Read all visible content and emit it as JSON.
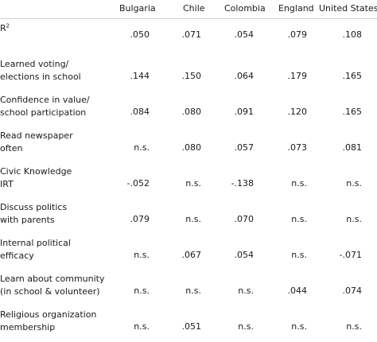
{
  "columns": [
    "Bulgaria",
    "Chile",
    "Colombia",
    "England",
    "United States"
  ],
  "rows": [
    {
      "label_lines": [
        "R",
        ""
      ],
      "label_sup": "2",
      "values": [
        ".050",
        ".071",
        ".054",
        ".079",
        ".108"
      ]
    },
    {
      "label_lines": [
        "Learned voting/",
        "elections in school"
      ],
      "values": [
        ".144",
        ".150",
        ".064",
        ".179",
        ".165"
      ]
    },
    {
      "label_lines": [
        "Confidence in value/",
        "school participation"
      ],
      "values": [
        ".084",
        ".080",
        ".091",
        ".120",
        ".165"
      ]
    },
    {
      "label_lines": [
        "Read newspaper",
        "often"
      ],
      "values": [
        "n.s.",
        ".080",
        ".057",
        ".073",
        ".081"
      ]
    },
    {
      "label_lines": [
        "Civic Knowledge",
        "IRT"
      ],
      "values": [
        "-.052",
        "n.s.",
        "-.138",
        "n.s.",
        "n.s."
      ]
    },
    {
      "label_lines": [
        "Discuss politics",
        "with parents"
      ],
      "values": [
        ".079",
        "n.s.",
        ".070",
        "n.s.",
        "n.s."
      ]
    },
    {
      "label_lines": [
        "Internal political",
        "efficacy"
      ],
      "values": [
        "n.s.",
        ".067",
        ".054",
        "n.s.",
        "-.071"
      ]
    },
    {
      "label_lines": [
        "Learn about community",
        "(in school & volunteer)"
      ],
      "values": [
        "n.s.",
        "n.s.",
        "n.s.",
        ".044",
        ".074"
      ]
    },
    {
      "label_lines": [
        "Religious organization",
        "membership"
      ],
      "values": [
        "n.s.",
        ".051",
        "n.s.",
        "n.s.",
        "n.s."
      ]
    }
  ]
}
